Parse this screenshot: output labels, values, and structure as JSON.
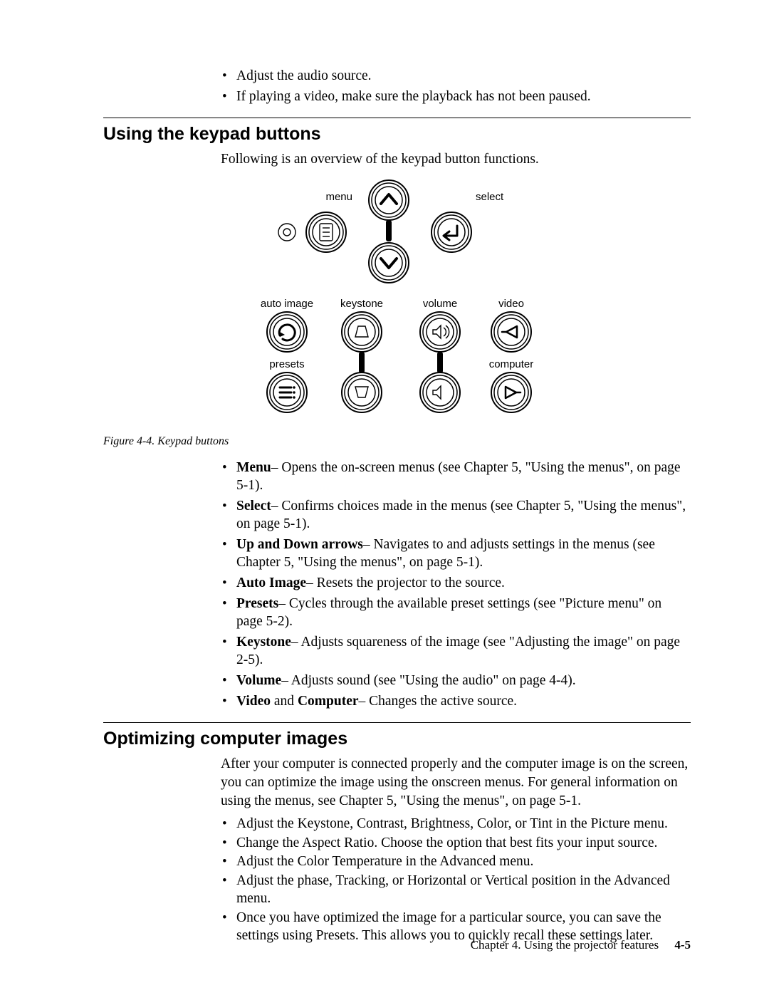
{
  "top_bullets": [
    "Adjust the audio source.",
    "If playing a video, make sure the playback has not been paused."
  ],
  "section1": {
    "title": "Using the keypad buttons",
    "lead": "Following is an overview of the keypad button functions.",
    "figure": {
      "caption": "Figure 4-4. Keypad buttons",
      "labels": {
        "menu": "menu",
        "select": "select",
        "auto_image": "auto image",
        "keystone": "keystone",
        "volume": "volume",
        "video": "video",
        "presets": "presets",
        "computer": "computer"
      }
    },
    "items": [
      {
        "term": "Menu",
        "rest": "– Opens the on-screen menus (see Chapter 5, \"Using the menus\", on page 5-1)."
      },
      {
        "term": "Select",
        "rest": "– Confirms choices made in the menus (see Chapter 5, \"Using the menus\", on page 5-1)."
      },
      {
        "term": "Up and Down arrows",
        "rest": "– Navigates to and adjusts settings in the menus (see Chapter 5, \"Using the menus\", on page 5-1)."
      },
      {
        "term": "Auto Image",
        "rest": "– Resets the projector to the source."
      },
      {
        "term": "Presets",
        "rest": "– Cycles through the available preset settings (see \"Picture menu\" on page 5-2)."
      },
      {
        "term": "Keystone",
        "rest": "– Adjusts squareness of the image (see \"Adjusting the image\" on page 2-5)."
      },
      {
        "term": "Volume",
        "rest": "– Adjusts sound (see \"Using the audio\" on page 4-4)."
      },
      {
        "term_html": "<span class=\"bold\">Video</span> and <span class=\"bold\">Computer</span>",
        "rest": "– Changes the active source."
      }
    ]
  },
  "section2": {
    "title": "Optimizing computer images",
    "lead": "After your computer is connected properly and the computer image is on the screen, you can optimize the image using the onscreen menus. For general information on using the menus, see Chapter 5, \"Using the menus\", on page 5-1.",
    "items": [
      "Adjust the Keystone, Contrast, Brightness, Color, or Tint in the Picture menu.",
      "Change the Aspect Ratio. Choose the option that best fits your input source.",
      "Adjust the Color Temperature in the Advanced menu.",
      "Adjust the phase, Tracking, or Horizontal or Vertical position in the Advanced menu.",
      "Once you have optimized the image for a particular source, you can save the settings using Presets. This allows you to quickly recall these settings later."
    ]
  },
  "footer": {
    "chapter": "Chapter 4. Using the projector features",
    "page": "4-5"
  }
}
